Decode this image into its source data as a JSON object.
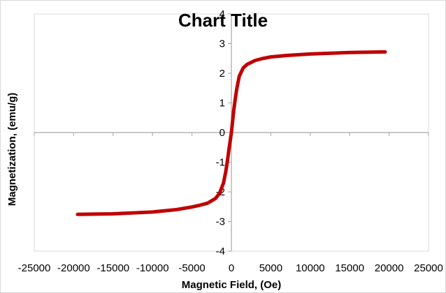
{
  "chart_data": {
    "type": "line",
    "title": "Chart Title",
    "xlabel": "Magnetic Field, (Oe)",
    "ylabel": "Magnetization, (emu/g)",
    "xlim": [
      -25000,
      25000
    ],
    "ylim": [
      -4,
      4
    ],
    "xticks": [
      -25000,
      -20000,
      -15000,
      -10000,
      -5000,
      0,
      5000,
      10000,
      15000,
      20000,
      25000
    ],
    "yticks": [
      -4,
      -3,
      -2,
      -1,
      0,
      1,
      2,
      3,
      4
    ],
    "grid": false,
    "series": [
      {
        "color": "#c00000",
        "x": [
          -19500,
          -15000,
          -10000,
          -7000,
          -5000,
          -4000,
          -3000,
          -2000,
          -1500,
          -1000,
          -700,
          -500,
          -300,
          -200,
          -100,
          0,
          100,
          200,
          300,
          500,
          700,
          1000,
          1500,
          2000,
          3000,
          4000,
          5000,
          7000,
          10000,
          15000,
          19500
        ],
        "y": [
          -2.76,
          -2.74,
          -2.68,
          -2.6,
          -2.51,
          -2.45,
          -2.38,
          -2.22,
          -2.05,
          -1.7,
          -1.3,
          -0.95,
          -0.55,
          -0.37,
          -0.19,
          0.0,
          0.25,
          0.5,
          0.75,
          1.15,
          1.5,
          1.9,
          2.18,
          2.3,
          2.43,
          2.5,
          2.55,
          2.6,
          2.65,
          2.7,
          2.72
        ]
      }
    ]
  }
}
